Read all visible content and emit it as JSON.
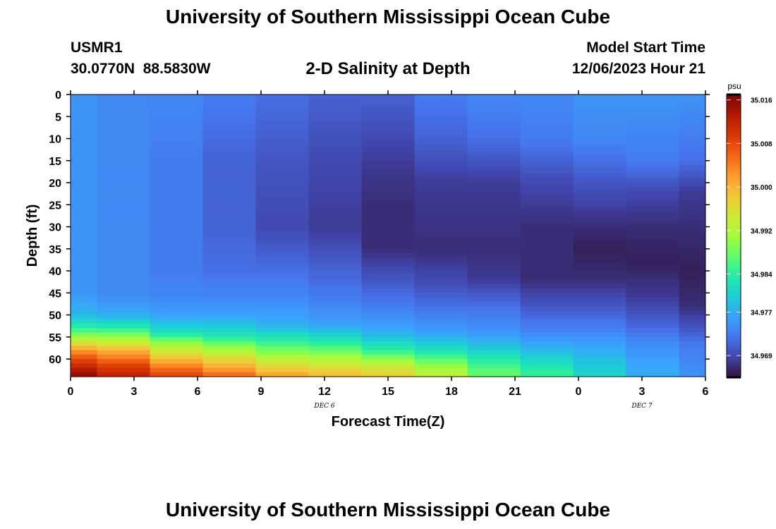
{
  "header": {
    "title": "University of Southern Mississippi Ocean Cube",
    "station_id": "USMR1",
    "station_coords": "30.0770N  88.5830W",
    "model_label": "Model Start Time",
    "model_time": "12/06/2023 Hour 21"
  },
  "footer": {
    "title": "University of Southern Mississippi Ocean Cube"
  },
  "colors": {
    "colormap": [
      "#30123b",
      "#4145ab",
      "#4675ed",
      "#39a2fc",
      "#1bcfd4",
      "#24eca6",
      "#61fc6c",
      "#a4fc3b",
      "#d1e834",
      "#f3c63a",
      "#fe9b2d",
      "#f36315",
      "#d93806",
      "#b11901",
      "#7a0402"
    ]
  },
  "chart_data": {
    "type": "heatmap",
    "title": "2-D Salinity at Depth",
    "xlabel": "Forecast Time(Z)",
    "ylabel": "Depth (ft)",
    "x_ticks": [
      "0",
      "3",
      "6",
      "9",
      "12",
      "15",
      "18",
      "21",
      "0",
      "3",
      "6"
    ],
    "x_hours": [
      0,
      3,
      6,
      9,
      12,
      15,
      18,
      21,
      24,
      27,
      30
    ],
    "xlim": [
      0,
      30
    ],
    "date_labels": [
      {
        "label": "DEC 6",
        "hour": 12
      },
      {
        "label": "DEC 7",
        "hour": 27
      }
    ],
    "y_ticks": [
      0,
      5,
      10,
      15,
      20,
      25,
      30,
      35,
      40,
      45,
      50,
      55,
      60
    ],
    "ylim": [
      0,
      64
    ],
    "y_reversed": true,
    "colorbar": {
      "unit": "psu",
      "ticks": [
        35.016,
        35.008,
        35.0,
        34.992,
        34.984,
        34.977,
        34.969
      ],
      "range": [
        34.965,
        35.017
      ]
    },
    "columns": [
      {
        "x0": 0,
        "x1": 1.25,
        "profile": [
          [
            0,
            34.975
          ],
          [
            45,
            34.975
          ],
          [
            50,
            34.978
          ],
          [
            53,
            34.984
          ],
          [
            56,
            34.994
          ],
          [
            58,
            35.002
          ],
          [
            60,
            35.008
          ],
          [
            62,
            35.012
          ],
          [
            64,
            35.016
          ]
        ]
      },
      {
        "x0": 1.25,
        "x1": 3.75,
        "profile": [
          [
            0,
            34.974
          ],
          [
            45,
            34.974
          ],
          [
            50,
            34.977
          ],
          [
            53,
            34.984
          ],
          [
            56,
            34.993
          ],
          [
            58,
            35.0
          ],
          [
            60,
            35.005
          ],
          [
            62,
            35.01
          ],
          [
            64,
            35.012
          ]
        ]
      },
      {
        "x0": 3.75,
        "x1": 6.25,
        "profile": [
          [
            0,
            34.974
          ],
          [
            15,
            34.973
          ],
          [
            40,
            34.973
          ],
          [
            46,
            34.974
          ],
          [
            50,
            34.976
          ],
          [
            54,
            34.982
          ],
          [
            57,
            34.992
          ],
          [
            60,
            34.999
          ],
          [
            62,
            35.005
          ],
          [
            64,
            35.009
          ]
        ]
      },
      {
        "x0": 6.25,
        "x1": 8.75,
        "profile": [
          [
            0,
            34.973
          ],
          [
            15,
            34.971
          ],
          [
            30,
            34.971
          ],
          [
            40,
            34.972
          ],
          [
            46,
            34.974
          ],
          [
            50,
            34.976
          ],
          [
            55,
            34.983
          ],
          [
            58,
            34.992
          ],
          [
            61,
            34.999
          ],
          [
            64,
            35.006
          ]
        ]
      },
      {
        "x0": 8.75,
        "x1": 11.25,
        "profile": [
          [
            0,
            34.972
          ],
          [
            15,
            34.97
          ],
          [
            30,
            34.969
          ],
          [
            40,
            34.972
          ],
          [
            46,
            34.974
          ],
          [
            52,
            34.977
          ],
          [
            56,
            34.984
          ],
          [
            60,
            34.993
          ],
          [
            64,
            35.002
          ]
        ]
      },
      {
        "x0": 11.25,
        "x1": 13.75,
        "profile": [
          [
            0,
            34.971
          ],
          [
            15,
            34.969
          ],
          [
            30,
            34.968
          ],
          [
            40,
            34.971
          ],
          [
            46,
            34.973
          ],
          [
            52,
            34.976
          ],
          [
            56,
            34.983
          ],
          [
            60,
            34.992
          ],
          [
            64,
            35.0
          ]
        ]
      },
      {
        "x0": 13.75,
        "x1": 16.25,
        "profile": [
          [
            0,
            34.971
          ],
          [
            15,
            34.968
          ],
          [
            25,
            34.967
          ],
          [
            35,
            34.967
          ],
          [
            42,
            34.97
          ],
          [
            48,
            34.973
          ],
          [
            54,
            34.977
          ],
          [
            58,
            34.984
          ],
          [
            61,
            34.993
          ],
          [
            64,
            34.998
          ]
        ]
      },
      {
        "x0": 16.25,
        "x1": 18.75,
        "profile": [
          [
            0,
            34.973
          ],
          [
            10,
            34.971
          ],
          [
            20,
            34.968
          ],
          [
            35,
            34.967
          ],
          [
            42,
            34.969
          ],
          [
            48,
            34.972
          ],
          [
            54,
            34.976
          ],
          [
            58,
            34.982
          ],
          [
            61,
            34.989
          ],
          [
            64,
            34.994
          ]
        ]
      },
      {
        "x0": 18.75,
        "x1": 21.25,
        "profile": [
          [
            0,
            34.974
          ],
          [
            10,
            34.972
          ],
          [
            20,
            34.968
          ],
          [
            35,
            34.967
          ],
          [
            42,
            34.968
          ],
          [
            48,
            34.972
          ],
          [
            54,
            34.975
          ],
          [
            58,
            34.98
          ],
          [
            61,
            34.985
          ],
          [
            64,
            34.988
          ]
        ]
      },
      {
        "x0": 21.25,
        "x1": 23.75,
        "profile": [
          [
            0,
            34.974
          ],
          [
            10,
            34.973
          ],
          [
            20,
            34.969
          ],
          [
            30,
            34.967
          ],
          [
            42,
            34.967
          ],
          [
            48,
            34.97
          ],
          [
            54,
            34.974
          ],
          [
            58,
            34.978
          ],
          [
            61,
            34.982
          ],
          [
            64,
            34.985
          ]
        ]
      },
      {
        "x0": 23.75,
        "x1": 26.25,
        "profile": [
          [
            0,
            34.975
          ],
          [
            10,
            34.974
          ],
          [
            20,
            34.97
          ],
          [
            30,
            34.967
          ],
          [
            35,
            34.966
          ],
          [
            42,
            34.967
          ],
          [
            48,
            34.97
          ],
          [
            54,
            34.974
          ],
          [
            58,
            34.977
          ],
          [
            61,
            34.979
          ],
          [
            64,
            34.981
          ]
        ]
      },
      {
        "x0": 26.25,
        "x1": 28.75,
        "profile": [
          [
            0,
            34.975
          ],
          [
            15,
            34.973
          ],
          [
            22,
            34.969
          ],
          [
            30,
            34.967
          ],
          [
            38,
            34.966
          ],
          [
            46,
            34.968
          ],
          [
            52,
            34.971
          ],
          [
            56,
            34.974
          ],
          [
            60,
            34.976
          ],
          [
            64,
            34.977
          ]
        ]
      },
      {
        "x0": 28.75,
        "x1": 30,
        "profile": [
          [
            0,
            34.975
          ],
          [
            15,
            34.972
          ],
          [
            22,
            34.968
          ],
          [
            30,
            34.967
          ],
          [
            40,
            34.966
          ],
          [
            48,
            34.967
          ],
          [
            53,
            34.97
          ],
          [
            57,
            34.973
          ],
          [
            61,
            34.974
          ],
          [
            64,
            34.975
          ]
        ]
      }
    ]
  }
}
